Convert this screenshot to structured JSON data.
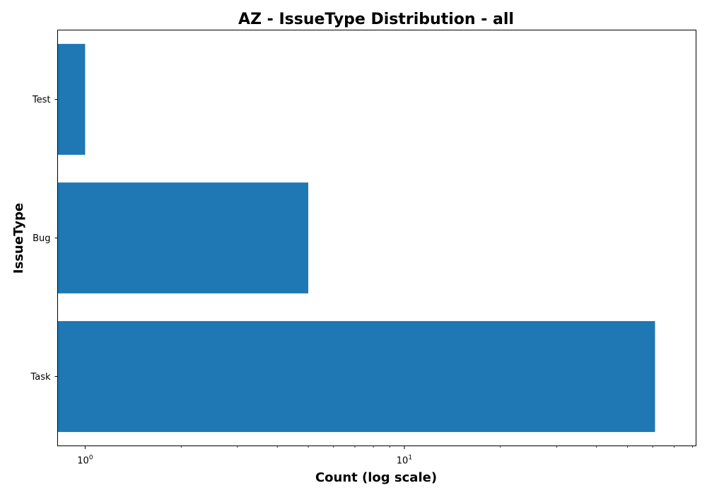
{
  "chart_data": {
    "type": "bar",
    "orientation": "horizontal",
    "title": "AZ - IssueType Distribution - all",
    "xlabel": "Count (log scale)",
    "ylabel": "IssueType",
    "xscale": "log",
    "xlim": [
      0.82,
      82
    ],
    "categories": [
      "Test",
      "Bug",
      "Task"
    ],
    "values": [
      1,
      5,
      61
    ],
    "bar_color": "#1f77b4",
    "major_ticks": [
      {
        "value": 1,
        "base": "10",
        "exp": "0"
      },
      {
        "value": 10,
        "base": "10",
        "exp": "1"
      }
    ],
    "minor_ticks": [
      2,
      3,
      4,
      5,
      6,
      7,
      8,
      9,
      20,
      30,
      40,
      50,
      60,
      70,
      80
    ],
    "grid": false,
    "legend": "none"
  }
}
